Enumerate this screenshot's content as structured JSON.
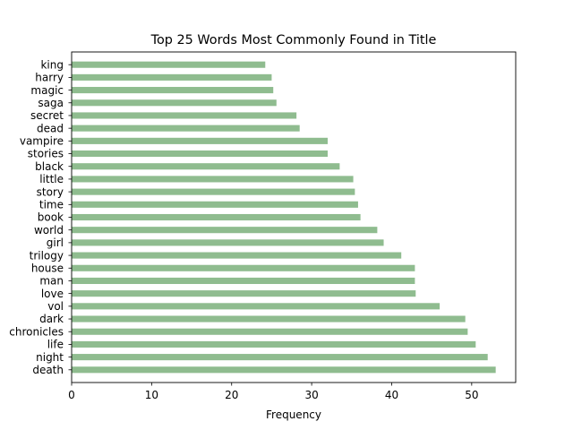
{
  "chart_data": {
    "type": "bar",
    "orientation": "horizontal",
    "title": "Top 25 Words Most Commonly Found in Title",
    "xlabel": "Frequency",
    "ylabel": "",
    "categories": [
      "death",
      "night",
      "life",
      "chronicles",
      "dark",
      "vol",
      "love",
      "man",
      "house",
      "trilogy",
      "girl",
      "world",
      "book",
      "time",
      "story",
      "little",
      "black",
      "stories",
      "vampire",
      "dead",
      "secret",
      "saga",
      "magic",
      "harry",
      "king"
    ],
    "values": [
      53,
      52,
      50.5,
      49.5,
      49.2,
      46,
      43,
      42.9,
      42.9,
      41.2,
      39,
      38.2,
      36.1,
      35.8,
      35.4,
      35.2,
      33.5,
      32,
      32,
      28.5,
      28.1,
      25.6,
      25.2,
      25,
      24.2
    ],
    "xlim": [
      0,
      55.5
    ],
    "xticks": [
      0,
      10,
      20,
      30,
      40,
      50
    ],
    "xtick_labels": [
      "0",
      "10",
      "20",
      "30",
      "40",
      "50"
    ],
    "grid": false,
    "legend": "none",
    "bar_color": "#8fbc8f"
  }
}
